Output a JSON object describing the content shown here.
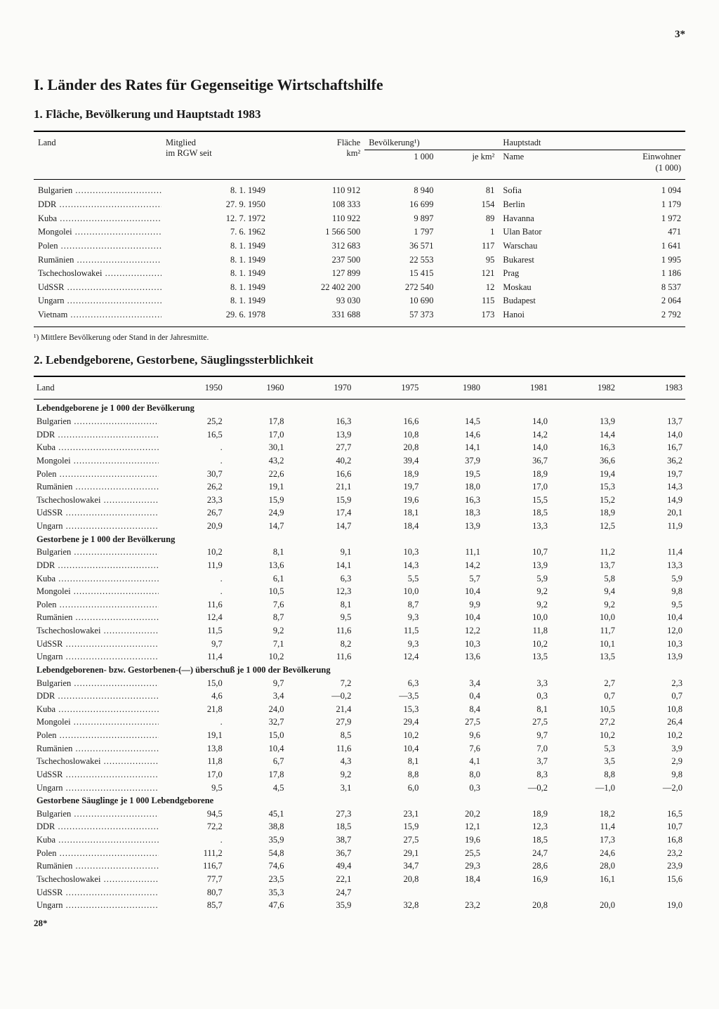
{
  "page_number_top": "3*",
  "page_number_bottom": "28*",
  "chapter_title": "I. Länder des Rates für Gegenseitige Wirtschaftshilfe",
  "table1": {
    "title": "1. Fläche, Bevölkerung und Hauptstadt 1983",
    "head": {
      "land": "Land",
      "mitglied": "Mitglied\nim RGW seit",
      "flaeche": "Fläche\nkm²",
      "bev_group": "Bevölkerung¹)",
      "bev_1000": "1 000",
      "bev_km2": "je km²",
      "haupt_group": "Hauptstadt",
      "haupt_name": "Name",
      "haupt_einw": "Einwohner\n(1 000)"
    },
    "rows": [
      {
        "land": "Bulgarien",
        "mitglied": "8. 1. 1949",
        "flaeche": "110 912",
        "bev1": "8 940",
        "bev2": "81",
        "haupt": "Sofia",
        "einw": "1 094"
      },
      {
        "land": "DDR",
        "mitglied": "27. 9. 1950",
        "flaeche": "108 333",
        "bev1": "16 699",
        "bev2": "154",
        "haupt": "Berlin",
        "einw": "1 179"
      },
      {
        "land": "Kuba",
        "mitglied": "12. 7. 1972",
        "flaeche": "110 922",
        "bev1": "9 897",
        "bev2": "89",
        "haupt": "Havanna",
        "einw": "1 972"
      },
      {
        "land": "Mongolei",
        "mitglied": "7. 6. 1962",
        "flaeche": "1 566 500",
        "bev1": "1 797",
        "bev2": "1",
        "haupt": "Ulan Bator",
        "einw": "471"
      },
      {
        "land": "Polen",
        "mitglied": "8. 1. 1949",
        "flaeche": "312 683",
        "bev1": "36 571",
        "bev2": "117",
        "haupt": "Warschau",
        "einw": "1 641"
      },
      {
        "land": "Rumänien",
        "mitglied": "8. 1. 1949",
        "flaeche": "237 500",
        "bev1": "22 553",
        "bev2": "95",
        "haupt": "Bukarest",
        "einw": "1 995"
      },
      {
        "land": "Tschechoslowakei",
        "mitglied": "8. 1. 1949",
        "flaeche": "127 899",
        "bev1": "15 415",
        "bev2": "121",
        "haupt": "Prag",
        "einw": "1 186"
      },
      {
        "land": "UdSSR",
        "mitglied": "8. 1. 1949",
        "flaeche": "22 402 200",
        "bev1": "272 540",
        "bev2": "12",
        "haupt": "Moskau",
        "einw": "8 537"
      },
      {
        "land": "Ungarn",
        "mitglied": "8. 1. 1949",
        "flaeche": "93 030",
        "bev1": "10 690",
        "bev2": "115",
        "haupt": "Budapest",
        "einw": "2 064"
      },
      {
        "land": "Vietnam",
        "mitglied": "29. 6. 1978",
        "flaeche": "331 688",
        "bev1": "57 373",
        "bev2": "173",
        "haupt": "Hanoi",
        "einw": "2 792"
      }
    ],
    "footnote": "¹) Mittlere Bevölkerung oder Stand in der Jahresmitte."
  },
  "table2": {
    "title": "2. Lebendgeborene, Gestorbene, Säuglingssterblichkeit",
    "years": [
      "1950",
      "1960",
      "1970",
      "1975",
      "1980",
      "1981",
      "1982",
      "1983"
    ],
    "head_land": "Land",
    "sections": [
      {
        "label": "Lebendgeborene je 1 000 der Bevölkerung",
        "rows": [
          {
            "land": "Bulgarien",
            "v": [
              "25,2",
              "17,8",
              "16,3",
              "16,6",
              "14,5",
              "14,0",
              "13,9",
              "13,7"
            ]
          },
          {
            "land": "DDR",
            "v": [
              "16,5",
              "17,0",
              "13,9",
              "10,8",
              "14,6",
              "14,2",
              "14,4",
              "14,0"
            ]
          },
          {
            "land": "Kuba",
            "v": [
              ".",
              "30,1",
              "27,7",
              "20,8",
              "14,1",
              "14,0",
              "16,3",
              "16,7"
            ]
          },
          {
            "land": "Mongolei",
            "v": [
              ".",
              "43,2",
              "40,2",
              "39,4",
              "37,9",
              "36,7",
              "36,6",
              "36,2"
            ]
          },
          {
            "land": "Polen",
            "v": [
              "30,7",
              "22,6",
              "16,6",
              "18,9",
              "19,5",
              "18,9",
              "19,4",
              "19,7"
            ]
          },
          {
            "land": "Rumänien",
            "v": [
              "26,2",
              "19,1",
              "21,1",
              "19,7",
              "18,0",
              "17,0",
              "15,3",
              "14,3"
            ]
          },
          {
            "land": "Tschechoslowakei",
            "v": [
              "23,3",
              "15,9",
              "15,9",
              "19,6",
              "16,3",
              "15,5",
              "15,2",
              "14,9"
            ]
          },
          {
            "land": "UdSSR",
            "v": [
              "26,7",
              "24,9",
              "17,4",
              "18,1",
              "18,3",
              "18,5",
              "18,9",
              "20,1"
            ]
          },
          {
            "land": "Ungarn",
            "v": [
              "20,9",
              "14,7",
              "14,7",
              "18,4",
              "13,9",
              "13,3",
              "12,5",
              "11,9"
            ]
          }
        ]
      },
      {
        "label": "Gestorbene je 1 000 der Bevölkerung",
        "rows": [
          {
            "land": "Bulgarien",
            "v": [
              "10,2",
              "8,1",
              "9,1",
              "10,3",
              "11,1",
              "10,7",
              "11,2",
              "11,4"
            ]
          },
          {
            "land": "DDR",
            "v": [
              "11,9",
              "13,6",
              "14,1",
              "14,3",
              "14,2",
              "13,9",
              "13,7",
              "13,3"
            ]
          },
          {
            "land": "Kuba",
            "v": [
              ".",
              "6,1",
              "6,3",
              "5,5",
              "5,7",
              "5,9",
              "5,8",
              "5,9"
            ]
          },
          {
            "land": "Mongolei",
            "v": [
              ".",
              "10,5",
              "12,3",
              "10,0",
              "10,4",
              "9,2",
              "9,4",
              "9,8"
            ]
          },
          {
            "land": "Polen",
            "v": [
              "11,6",
              "7,6",
              "8,1",
              "8,7",
              "9,9",
              "9,2",
              "9,2",
              "9,5"
            ]
          },
          {
            "land": "Rumänien",
            "v": [
              "12,4",
              "8,7",
              "9,5",
              "9,3",
              "10,4",
              "10,0",
              "10,0",
              "10,4"
            ]
          },
          {
            "land": "Tschechoslowakei",
            "v": [
              "11,5",
              "9,2",
              "11,6",
              "11,5",
              "12,2",
              "11,8",
              "11,7",
              "12,0"
            ]
          },
          {
            "land": "UdSSR",
            "v": [
              "9,7",
              "7,1",
              "8,2",
              "9,3",
              "10,3",
              "10,2",
              "10,1",
              "10,3"
            ]
          },
          {
            "land": "Ungarn",
            "v": [
              "11,4",
              "10,2",
              "11,6",
              "12,4",
              "13,6",
              "13,5",
              "13,5",
              "13,9"
            ]
          }
        ]
      },
      {
        "label": "Lebendgeborenen- bzw. Gestorbenen-(—) überschuß je 1 000 der Bevölkerung",
        "rows": [
          {
            "land": "Bulgarien",
            "v": [
              "15,0",
              "9,7",
              "7,2",
              "6,3",
              "3,4",
              "3,3",
              "2,7",
              "2,3"
            ]
          },
          {
            "land": "DDR",
            "v": [
              "4,6",
              "3,4",
              "—0,2",
              "—3,5",
              "0,4",
              "0,3",
              "0,7",
              "0,7"
            ]
          },
          {
            "land": "Kuba",
            "v": [
              "21,8",
              "24,0",
              "21,4",
              "15,3",
              "8,4",
              "8,1",
              "10,5",
              "10,8"
            ]
          },
          {
            "land": "Mongolei",
            "v": [
              ".",
              "32,7",
              "27,9",
              "29,4",
              "27,5",
              "27,5",
              "27,2",
              "26,4"
            ]
          },
          {
            "land": "Polen",
            "v": [
              "19,1",
              "15,0",
              "8,5",
              "10,2",
              "9,6",
              "9,7",
              "10,2",
              "10,2"
            ]
          },
          {
            "land": "Rumänien",
            "v": [
              "13,8",
              "10,4",
              "11,6",
              "10,4",
              "7,6",
              "7,0",
              "5,3",
              "3,9"
            ]
          },
          {
            "land": "Tschechoslowakei",
            "v": [
              "11,8",
              "6,7",
              "4,3",
              "8,1",
              "4,1",
              "3,7",
              "3,5",
              "2,9"
            ]
          },
          {
            "land": "UdSSR",
            "v": [
              "17,0",
              "17,8",
              "9,2",
              "8,8",
              "8,0",
              "8,3",
              "8,8",
              "9,8"
            ]
          },
          {
            "land": "Ungarn",
            "v": [
              "9,5",
              "4,5",
              "3,1",
              "6,0",
              "0,3",
              "—0,2",
              "—1,0",
              "—2,0"
            ]
          }
        ]
      },
      {
        "label": "Gestorbene Säuglinge je 1 000 Lebendgeborene",
        "rows": [
          {
            "land": "Bulgarien",
            "v": [
              "94,5",
              "45,1",
              "27,3",
              "23,1",
              "20,2",
              "18,9",
              "18,2",
              "16,5"
            ]
          },
          {
            "land": "DDR",
            "v": [
              "72,2",
              "38,8",
              "18,5",
              "15,9",
              "12,1",
              "12,3",
              "11,4",
              "10,7"
            ]
          },
          {
            "land": "Kuba",
            "v": [
              ".",
              "35,9",
              "38,7",
              "27,5",
              "19,6",
              "18,5",
              "17,3",
              "16,8"
            ]
          },
          {
            "land": "Polen",
            "v": [
              "111,2",
              "54,8",
              "36,7",
              "29,1",
              "25,5",
              "24,7",
              "24,6",
              "23,2"
            ]
          },
          {
            "land": "Rumänien",
            "v": [
              "116,7",
              "74,6",
              "49,4",
              "34,7",
              "29,3",
              "28,6",
              "28,0",
              "23,9"
            ]
          },
          {
            "land": "Tschechoslowakei",
            "v": [
              "77,7",
              "23,5",
              "22,1",
              "20,8",
              "18,4",
              "16,9",
              "16,1",
              "15,6"
            ]
          },
          {
            "land": "UdSSR",
            "v": [
              "80,7",
              "35,3",
              "24,7",
              "",
              "",
              "",
              "",
              ""
            ]
          },
          {
            "land": "Ungarn",
            "v": [
              "85,7",
              "47,6",
              "35,9",
              "32,8",
              "23,2",
              "20,8",
              "20,0",
              "19,0"
            ]
          }
        ]
      }
    ]
  }
}
